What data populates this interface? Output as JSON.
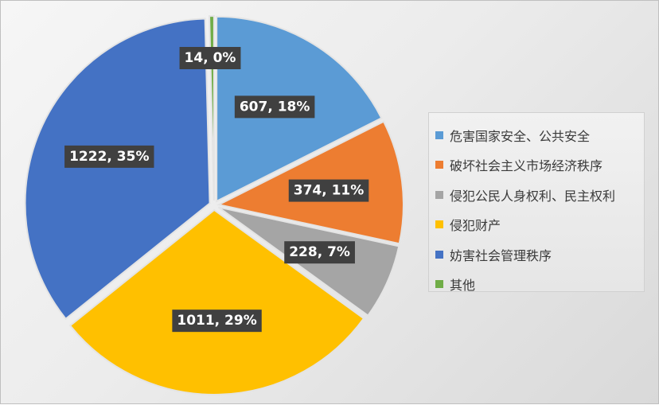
{
  "chart_data": {
    "type": "pie",
    "title": "",
    "categories": [
      "危害国家安全、公共安全",
      "破坏社会主义市场经济秩序",
      "侵犯公民人身权利、民主权利",
      "侵犯财产",
      "妨害社会管理秩序",
      "其他"
    ],
    "values": [
      607,
      374,
      228,
      1011,
      1222,
      14
    ],
    "percent_labels": [
      "18%",
      "11%",
      "7%",
      "29%",
      "35%",
      "0%"
    ],
    "data_labels": [
      "607, 18%",
      "374, 11%",
      "228, 7%",
      "1011, 29%",
      "1222, 35%",
      "14, 0%"
    ],
    "colors": [
      "#5b9bd5",
      "#ed7d31",
      "#a5a5a5",
      "#ffc000",
      "#4472c4",
      "#70ad47"
    ],
    "exploded": true,
    "start_angle": "12 o'clock",
    "direction": "clockwise",
    "legend_position": "right"
  }
}
